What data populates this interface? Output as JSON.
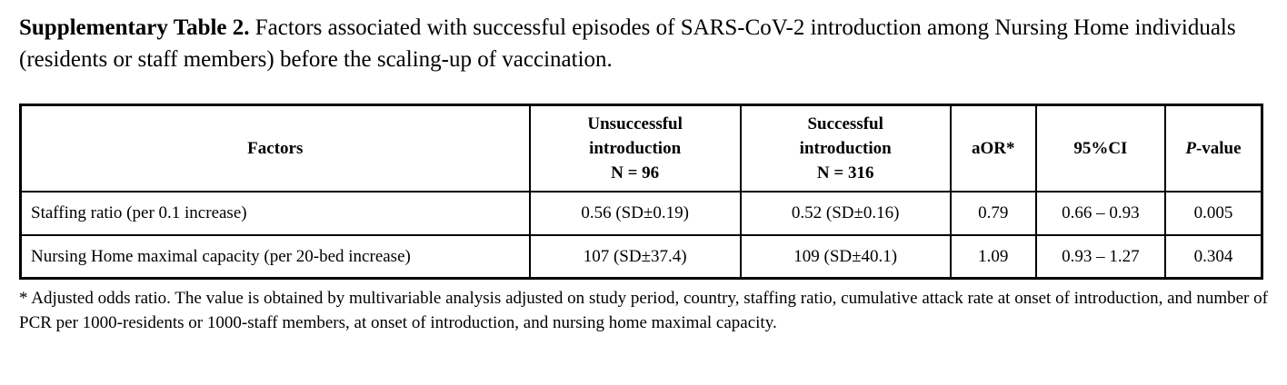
{
  "title": {
    "label": "Supplementary Table 2.",
    "text": " Factors associated with successful episodes of SARS-CoV-2 introduction among Nursing Home individuals (residents or staff members) before the scaling-up of vaccination."
  },
  "table": {
    "col_headers": {
      "factors": "Factors",
      "unsuccessful": "Unsuccessful\nintroduction\nN = 96",
      "successful": "Successful\nintroduction\nN = 316",
      "aor": "aOR*",
      "ci": "95%CI",
      "p_italic": "P",
      "p_rest": "-value"
    },
    "rows": [
      {
        "factor": "Staffing ratio (per 0.1 increase)",
        "unsuccessful": "0.56 (SD±0.19)",
        "successful": "0.52 (SD±0.16)",
        "aor": "0.79",
        "ci": "0.66 – 0.93",
        "p": "0.005"
      },
      {
        "factor": "Nursing Home maximal capacity (per 20-bed increase)",
        "unsuccessful": "107 (SD±37.4)",
        "successful": "109 (SD±40.1)",
        "aor": "1.09",
        "ci": "0.93 – 1.27",
        "p": "0.304"
      }
    ]
  },
  "footnote": "* Adjusted odds ratio. The value is obtained by multivariable analysis adjusted on study period, country, staffing ratio, cumulative attack rate at onset of introduction, and number of PCR per 1000-residents or 1000-staff members, at onset of introduction, and nursing home maximal capacity.",
  "colors": {
    "text": "#000000",
    "background": "#ffffff",
    "border": "#000000"
  }
}
